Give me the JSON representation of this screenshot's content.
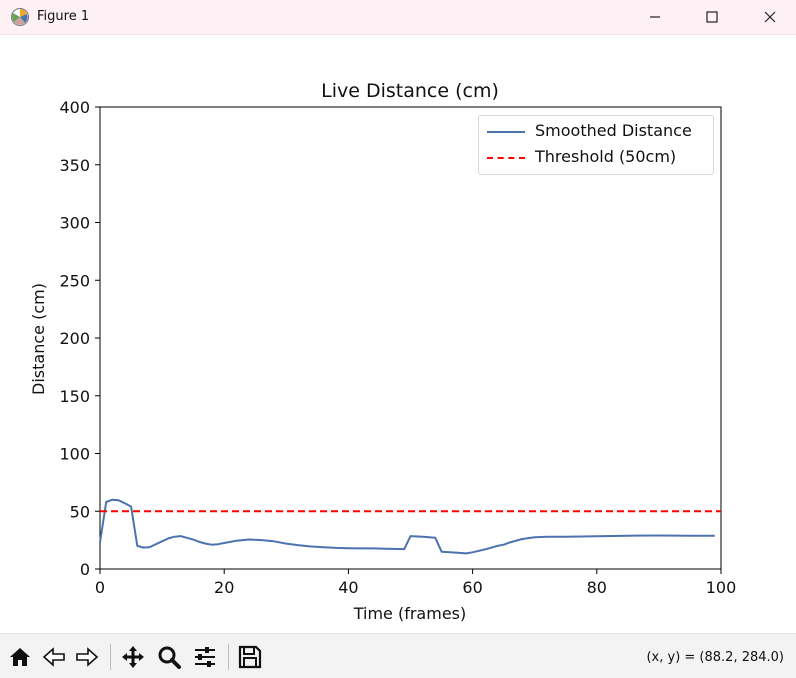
{
  "window": {
    "title": "Figure 1",
    "icons": {
      "app": "matplotlib-icon",
      "minimize": "minimize-icon",
      "maximize": "maximize-icon",
      "close": "close-icon"
    }
  },
  "toolbar": {
    "icons": [
      "home-icon",
      "back-icon",
      "forward-icon",
      "pan-icon",
      "zoom-icon",
      "configure-subplots-icon",
      "save-icon"
    ],
    "coordinates": "(x, y) = (88.2, 284.0)"
  },
  "chart_data": {
    "type": "line",
    "title": "Live Distance (cm)",
    "xlabel": "Time (frames)",
    "ylabel": "Distance (cm)",
    "xlim": [
      0,
      100
    ],
    "ylim": [
      0,
      400
    ],
    "xticks": [
      0,
      20,
      40,
      60,
      80,
      100
    ],
    "yticks": [
      0,
      50,
      100,
      150,
      200,
      250,
      300,
      350,
      400
    ],
    "grid": false,
    "legend_position": "top-right",
    "series": [
      {
        "name": "Smoothed Distance",
        "color": "#4c72b0",
        "style": "solid",
        "x": [
          0,
          1,
          2,
          3,
          4,
          5,
          6,
          7,
          8,
          9,
          10,
          11,
          12,
          13,
          14,
          15,
          16,
          17,
          18,
          19,
          20,
          22,
          24,
          26,
          28,
          30,
          32,
          34,
          36,
          38,
          40,
          42,
          44,
          46,
          48,
          49,
          50,
          52,
          54,
          55,
          57,
          59,
          60,
          62,
          64,
          65,
          66,
          68,
          70,
          72,
          75,
          80,
          85,
          90,
          95,
          99
        ],
        "y": [
          23,
          58,
          60,
          59.5,
          57,
          54,
          20,
          18.5,
          19,
          21.5,
          24,
          26.5,
          28,
          28.5,
          27,
          25.5,
          23.5,
          22,
          21,
          21.5,
          22.5,
          24.5,
          25.5,
          25,
          24,
          22,
          20.5,
          19.5,
          18.8,
          18.3,
          18,
          17.8,
          17.8,
          17.6,
          17.3,
          17.2,
          28.5,
          28,
          27,
          15,
          14.3,
          13.5,
          14.5,
          17,
          20,
          21,
          23,
          26,
          27.5,
          28,
          28,
          28.3,
          28.8,
          29,
          28.8,
          28.8
        ]
      },
      {
        "name": "Threshold (50cm)",
        "color": "#ff0000",
        "style": "dashed",
        "x": [
          0,
          100
        ],
        "y": [
          50,
          50
        ]
      }
    ]
  }
}
